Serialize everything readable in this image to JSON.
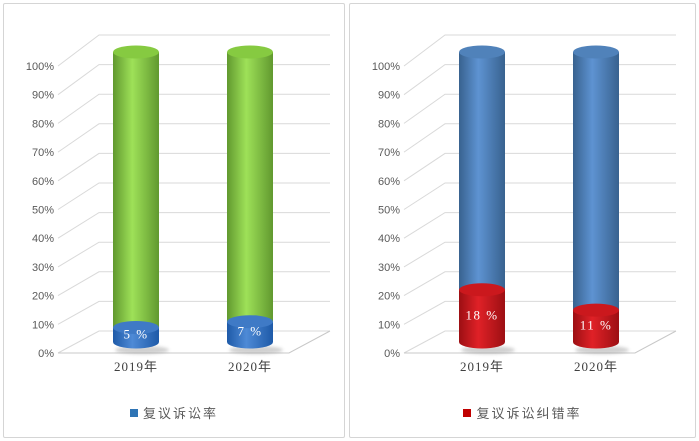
{
  "styles": {
    "background": "#ffffff",
    "panel_border": "#d5d5d5",
    "grid_color": "#d9d9d9",
    "floor_color": "#c8c8c8",
    "tick_color": "#595959",
    "category_color": "#404040",
    "data_label_color": "#ffffff",
    "legend_text_color": "#595959",
    "shadow_color": "#8a8a8a"
  },
  "chart_data": [
    {
      "type": "bar",
      "variant": "3d-cylinder-stacked",
      "title": "",
      "xlabel": "",
      "ylabel": "",
      "ylim": [
        0,
        100
      ],
      "grid": true,
      "categories": [
        "2019年",
        "2020年"
      ],
      "ytick_labels": [
        "0%",
        "10%",
        "20%",
        "30%",
        "40%",
        "50%",
        "60%",
        "70%",
        "80%",
        "90%",
        "100%"
      ],
      "series": [
        {
          "name": "复议诉讼率",
          "values": [
            5,
            7
          ],
          "data_labels": [
            "5 %",
            "7 %"
          ],
          "color": "#2e74b5",
          "gradient": [
            "#1e5aa8",
            "#4e8ad6"
          ],
          "cap": "#3f7ac6",
          "show_in_legend": true
        },
        {
          "name": "",
          "values": [
            95,
            93
          ],
          "data_labels": [
            "",
            ""
          ],
          "color": "#8cc63e",
          "gradient": [
            "#61992f",
            "#9ee158"
          ],
          "cap": "#86ca41",
          "show_in_legend": false
        }
      ],
      "legend": {
        "position": "bottom",
        "entries": [
          {
            "label": "复议诉讼率",
            "color": "#2e74b5"
          }
        ]
      }
    },
    {
      "type": "bar",
      "variant": "3d-cylinder-stacked",
      "title": "",
      "xlabel": "",
      "ylabel": "",
      "ylim": [
        0,
        100
      ],
      "grid": true,
      "categories": [
        "2019年",
        "2020年"
      ],
      "ytick_labels": [
        "0%",
        "10%",
        "20%",
        "30%",
        "40%",
        "50%",
        "60%",
        "70%",
        "80%",
        "90%",
        "100%"
      ],
      "series": [
        {
          "name": "复议诉讼纠错率",
          "values": [
            18,
            11
          ],
          "data_labels": [
            "18 %",
            "11 %"
          ],
          "color": "#c00000",
          "gradient": [
            "#9c0f13",
            "#e02127"
          ],
          "cap": "#cb181d",
          "show_in_legend": true
        },
        {
          "name": "",
          "values": [
            82,
            89
          ],
          "data_labels": [
            "",
            ""
          ],
          "color": "#4f81bd",
          "gradient": [
            "#38628f",
            "#5e93d2"
          ],
          "cap": "#5082ba",
          "show_in_legend": false
        }
      ],
      "legend": {
        "position": "bottom",
        "entries": [
          {
            "label": "复议诉讼纠错率",
            "color": "#c00000"
          }
        ]
      }
    }
  ]
}
